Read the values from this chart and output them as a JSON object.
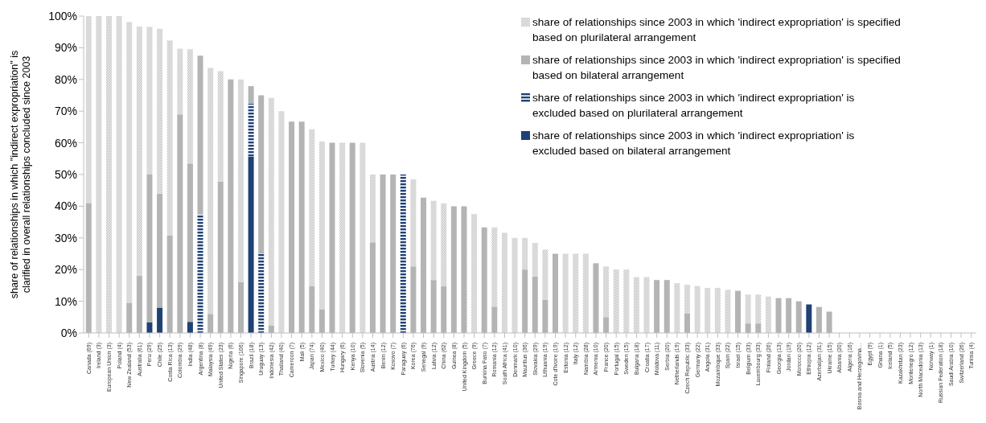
{
  "chart_data": {
    "type": "bar",
    "stacked": true,
    "ylabel": "share of relationships in which \"indirect expropriation\" is clarified in overall relationships concluded since 2003",
    "categories": [
      "Canada (69)",
      "Ireland (3)",
      "European Union (3)",
      "Poland (4)",
      "New Zealand (53)",
      "Australia (61)",
      "Peru (29)",
      "Chile (25)",
      "Costa Rica (13)",
      "Colombia (29)",
      "India (48)",
      "Argentina (8)",
      "Malaysia (49)",
      "United States (23)",
      "Nigeria (6)",
      "Singapore (106)",
      "Brazil (18)",
      "Uruguay (13)",
      "Indonesia (42)",
      "Thailand (40)",
      "Cameroon (7)",
      "Mali (5)",
      "Japan (74)",
      "Mexico (40)",
      "Turkey (44)",
      "Hungary (6)",
      "Kenya (10)",
      "Slovenia (5)",
      "Austria (14)",
      "Benin (12)",
      "Kosovo (7)",
      "Paraguay (6)",
      "Korea (76)",
      "Senegal (9)",
      "Latvia (12)",
      "China (62)",
      "Guinea (8)",
      "United Kingdom (5)",
      "Greece (9)",
      "Burkina Faso (7)",
      "Romania (12)",
      "South Africa (41)",
      "Denmark (10)",
      "Mauritius (36)",
      "Slovakia (29)",
      "Lithuania (19)",
      "Cote d'Ivoire (19)",
      "Estonia (12)",
      "Italy (12)",
      "Namibia (28)",
      "Armenia (10)",
      "France (20)",
      "Portugal (15)",
      "Sweden (15)",
      "Bulgaria (18)",
      "Croatia (17)",
      "Moldova (11)",
      "Serbia (20)",
      "Netherlands (19)",
      "Czech Republic (33)",
      "Germany (22)",
      "Angola (31)",
      "Mozambique (33)",
      "Spain (22)",
      "Israel (15)",
      "Belgium (33)",
      "Luxembourg (33)",
      "Finland (26)",
      "Georgia (13)",
      "Jordan (19)",
      "Morocco (20)",
      "Ethiopia (12)",
      "Azerbaijan (31)",
      "Ukraine (15)",
      "Albania (20)",
      "Algeria (16)",
      "Bosnia and Herzegovina…",
      "Egypt (9)",
      "Ghana (1)",
      "Iceland (5)",
      "Kazakhstan (23)",
      "Montenegro (12)",
      "North Macedonia (13)",
      "Norway (1)",
      "Russian Federation (18)",
      "Saudi Arabia (10)",
      "Switzerland (26)",
      "Tunisia (4)"
    ],
    "series": [
      {
        "name": "share of relationships since 2003 in which 'indirect expropriation' is excluded based on bilateral arrangement",
        "color": "#1f4274",
        "values": [
          0,
          0,
          0,
          0,
          0,
          0,
          3.4,
          8,
          0,
          0,
          3.5,
          0,
          0,
          0,
          0,
          0,
          55.6,
          0,
          0,
          0,
          0,
          0,
          0,
          0,
          0,
          0,
          0,
          0,
          0,
          0,
          0,
          0,
          0,
          0,
          0,
          0,
          0,
          0,
          0,
          0,
          0,
          0,
          0,
          0,
          0,
          0,
          0,
          0,
          0,
          0,
          0,
          0,
          0,
          0,
          0,
          0,
          0,
          0,
          0,
          0,
          0,
          0,
          0,
          0,
          0,
          0,
          0,
          0,
          0,
          0,
          0,
          9,
          0,
          0,
          0,
          0,
          0,
          0,
          0,
          0,
          0,
          0,
          0,
          0,
          0,
          0,
          0,
          0
        ]
      },
      {
        "name": "share of relationships since 2003 in which 'indirect expropriation' is excluded based on plurilateral arrangement",
        "color": "#1f4274",
        "values": [
          0,
          0,
          0,
          0,
          0,
          0,
          0,
          0,
          0,
          0,
          0,
          37.5,
          0,
          0,
          0,
          0,
          16.7,
          25,
          0,
          0,
          0,
          0,
          0,
          0,
          0,
          0,
          0,
          0,
          0,
          0,
          0,
          50,
          0,
          0,
          0,
          0,
          0,
          0,
          0,
          0,
          0,
          0,
          0,
          0,
          0,
          0,
          0,
          0,
          0,
          0,
          0,
          0,
          0,
          0,
          0,
          0,
          0,
          0,
          0,
          0,
          0,
          0,
          0,
          0,
          0,
          0,
          0,
          0,
          0,
          0,
          0,
          0,
          0,
          0,
          0,
          0,
          0,
          0,
          0,
          0,
          0,
          0,
          0,
          0,
          0,
          0,
          0,
          0
        ]
      },
      {
        "name": "share of relationships since 2003 in which 'indirect expropriation' is specified based on bilateral arrangement",
        "color": "#b4b4b4",
        "values": [
          41,
          0,
          0,
          0,
          9.4,
          18,
          46.6,
          36,
          30.8,
          69,
          50,
          50,
          6,
          47.8,
          80,
          16,
          5.6,
          50,
          2.4,
          0,
          66.7,
          66.7,
          14.8,
          7.5,
          60,
          0,
          60,
          0,
          28.6,
          50,
          50,
          0,
          21,
          42.7,
          16.7,
          14.7,
          40,
          40,
          0,
          33.3,
          8.3,
          0,
          0,
          20,
          17.8,
          10.5,
          25,
          0,
          0,
          0,
          22,
          5,
          0,
          0,
          0,
          0,
          16.7,
          16.7,
          0,
          6.1,
          0,
          0,
          0,
          0,
          13.3,
          3,
          3,
          0,
          11,
          11,
          10,
          0,
          8.2,
          6.7,
          0,
          0,
          0,
          0,
          0,
          0,
          0,
          0,
          0,
          0,
          0,
          0,
          0,
          0
        ]
      },
      {
        "name": "share of relationships since 2003 in which 'indirect expropriation' is specified based on plurilateral arrangement",
        "color": "#b4b4b4",
        "values": [
          59,
          100,
          100,
          100,
          88.7,
          78.7,
          46.6,
          52,
          61.5,
          20.7,
          36,
          0,
          77.6,
          34.8,
          0,
          64,
          0,
          0,
          71.8,
          70,
          0,
          0,
          49.5,
          52.9,
          0,
          60,
          0,
          60,
          21.4,
          0,
          0,
          0,
          27.5,
          0,
          25,
          26.2,
          0,
          0,
          37.5,
          0,
          25,
          31.6,
          30,
          10,
          10.6,
          15.8,
          0,
          25,
          25,
          25,
          0,
          16,
          20,
          20,
          17.6,
          17.6,
          0,
          0,
          15.7,
          9.1,
          14.8,
          14.2,
          14.2,
          13.6,
          0,
          9.1,
          9.1,
          11.5,
          0,
          0,
          0,
          0,
          0,
          0,
          0,
          0,
          0,
          0,
          0,
          0,
          0,
          0,
          0,
          0,
          0,
          0,
          0,
          0
        ]
      }
    ],
    "ylim": [
      0,
      100
    ],
    "yticks": [
      {
        "value": 0,
        "label": "0%"
      },
      {
        "value": 10,
        "label": "10%"
      },
      {
        "value": 20,
        "label": "20%"
      },
      {
        "value": 30,
        "label": "30%"
      },
      {
        "value": 40,
        "label": "40%"
      },
      {
        "value": 50,
        "label": "50%"
      },
      {
        "value": 60,
        "label": "60%"
      },
      {
        "value": 70,
        "label": "70%"
      },
      {
        "value": 80,
        "label": "80%"
      },
      {
        "value": 90,
        "label": "90%"
      },
      {
        "value": 100,
        "label": "100%"
      }
    ],
    "grid": false,
    "legend": "top right"
  }
}
